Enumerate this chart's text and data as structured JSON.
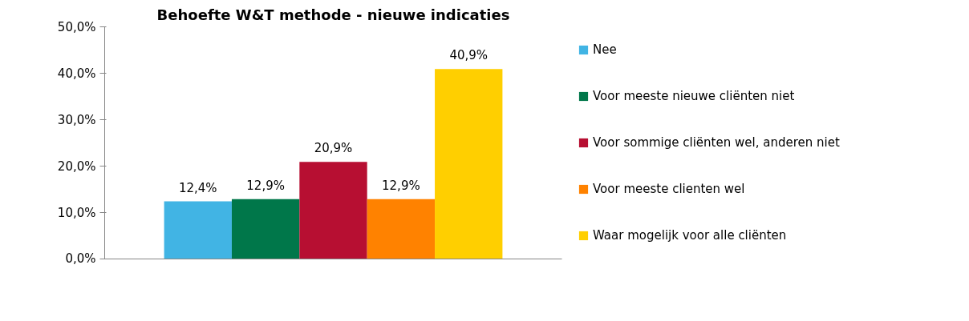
{
  "chart_data": {
    "type": "bar",
    "title": "Behoefte W&T methode - nieuwe indicaties",
    "categories": [
      null
    ],
    "series": [
      {
        "name": "Nee",
        "color": "#41b4e4",
        "values": [
          12.4
        ],
        "value_labels": [
          "12,4%"
        ]
      },
      {
        "name": "Voor meeste nieuwe cliënten niet",
        "color": "#00774a",
        "values": [
          12.9
        ],
        "value_labels": [
          "12,9%"
        ]
      },
      {
        "name": "Voor sommige cliënten wel, anderen niet",
        "color": "#b70f32",
        "values": [
          20.9
        ],
        "value_labels": [
          "20,9%"
        ]
      },
      {
        "name": "Voor meeste clienten wel",
        "color": "#ff8200",
        "values": [
          12.9
        ],
        "value_labels": [
          "12,9%"
        ]
      },
      {
        "name": "Waar mogelijk voor alle cliënten",
        "color": "#ffcf00",
        "values": [
          40.9
        ],
        "value_labels": [
          "40,9%"
        ]
      }
    ],
    "ylim": [
      0,
      50
    ],
    "yticks": [
      {
        "value": 0,
        "label": "0,0%"
      },
      {
        "value": 10,
        "label": "10,0%"
      },
      {
        "value": 20,
        "label": "20,0%"
      },
      {
        "value": 30,
        "label": "30,0%"
      },
      {
        "value": 40,
        "label": "40,0%"
      },
      {
        "value": 50,
        "label": "50,0%"
      }
    ],
    "grid": false,
    "legend": "right",
    "tick_labels": "y"
  }
}
